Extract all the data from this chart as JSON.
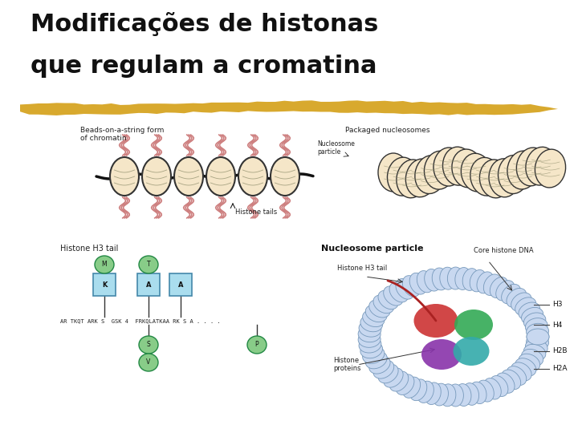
{
  "title_line1": "Modificações de histonas",
  "title_line2": "que regulam a cromatina",
  "title_color": "#111111",
  "title_fontsize": 22,
  "title_fontweight": "bold",
  "bg_color": "#ffffff",
  "highlight_color": "#D4A017",
  "figsize": [
    7.2,
    5.4
  ],
  "dpi": 100,
  "seq_text": "AR TKQ  ARKS  GSK 4  FRKQLATKAA RK S A . . . .",
  "diagram_labels": {
    "beads_title": "Beads-on-a-string form\nof chromatin",
    "packaged_title": "Packaged nucleosomes",
    "nucleosome_particle": "Nucleosome\nparticle",
    "histone_tails": "Histone tails",
    "histone_h3_tail": "Histone H3 tail",
    "nucleosome_particle_bold": "Nucleosome particle",
    "histone_h3_tail2": "Histone H3 tail",
    "core_histone_dna": "Core histone DNA",
    "histone_proteins": "Histone\nproteins",
    "h3": "H3",
    "h4": "H4",
    "h2b": "H2B",
    "h2a": "H2A"
  }
}
